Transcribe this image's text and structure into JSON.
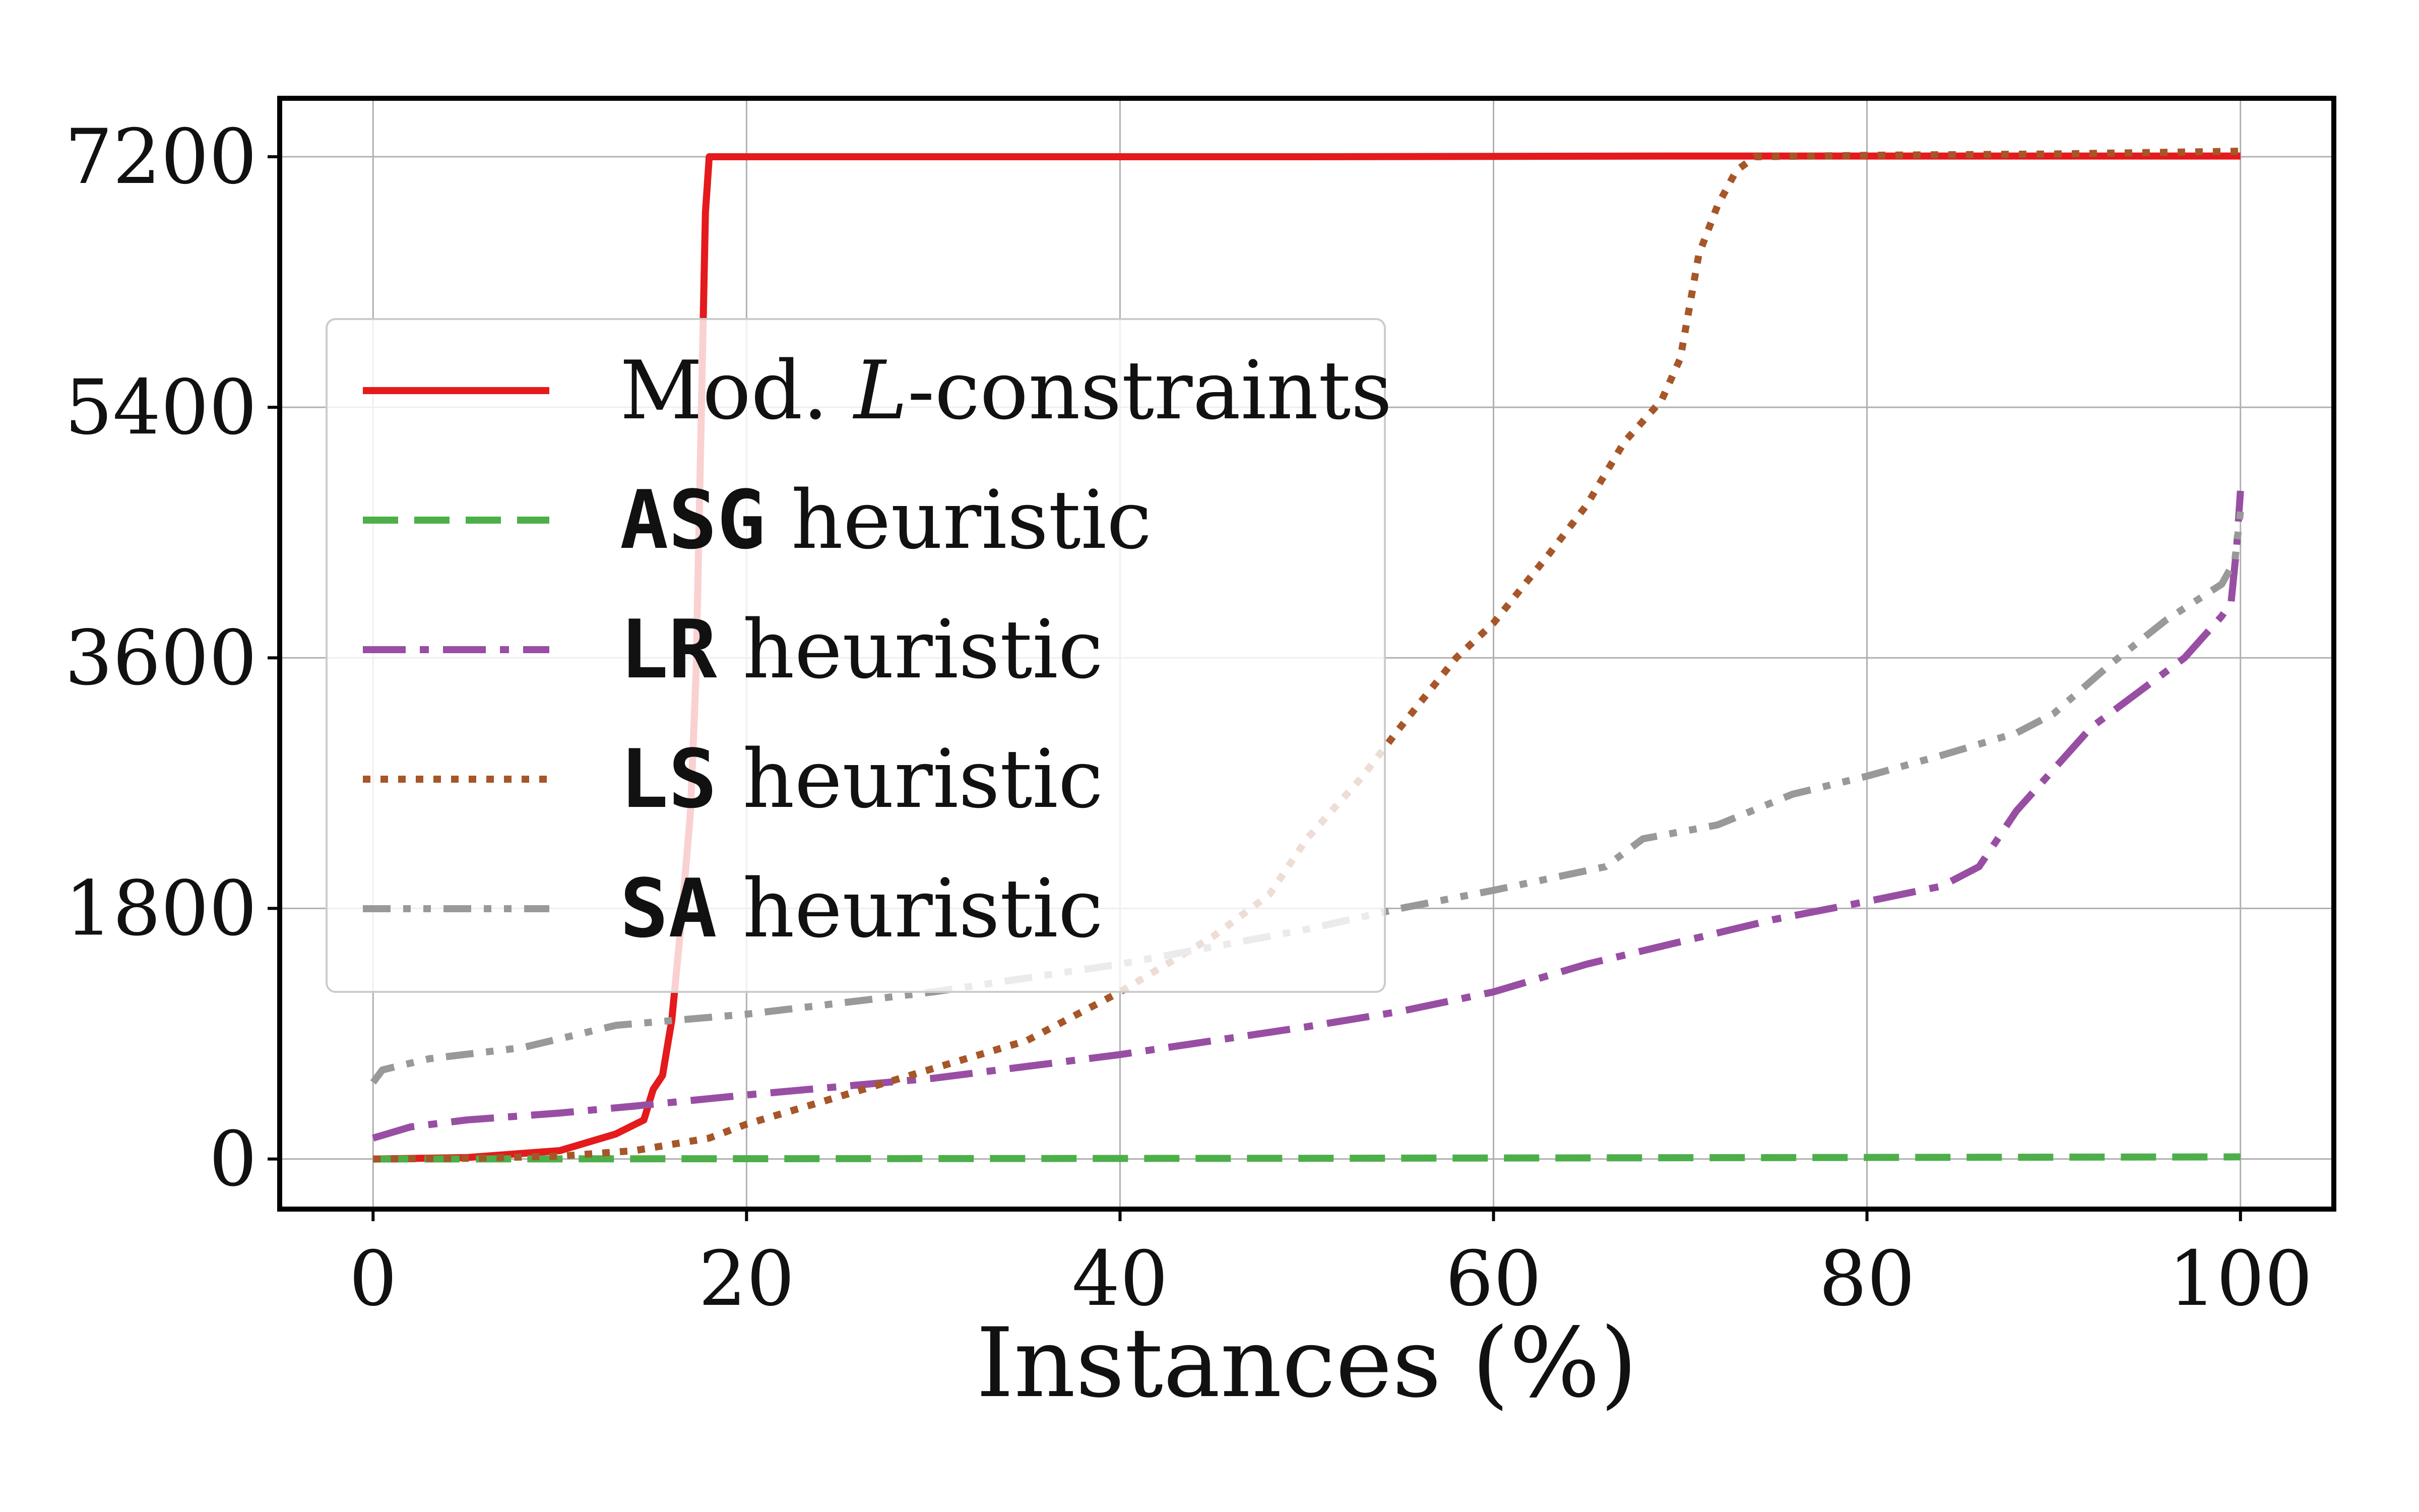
{
  "chart_data": {
    "type": "line",
    "title": "",
    "xlabel": "Instances (%)",
    "ylabel": "",
    "xlim": [
      -5,
      105
    ],
    "ylim": [
      -360,
      7620
    ],
    "xticks": [
      0,
      20,
      40,
      60,
      80,
      100
    ],
    "yticks": [
      0,
      1800,
      3600,
      5400,
      7200
    ],
    "xtick_labels": [
      "0",
      "20",
      "40",
      "60",
      "80",
      "100"
    ],
    "ytick_labels": [
      "0",
      "1800",
      "3600",
      "5400",
      "7200"
    ],
    "grid": true,
    "legend_position": "upper-left",
    "series": [
      {
        "name": "Mod. L-constraints",
        "legend_prefix": "Mod. ",
        "legend_italic": "L",
        "legend_suffix": "-constraints",
        "color": "#e41a1c",
        "dash": "solid",
        "x": [
          0,
          5,
          10,
          13,
          14.5,
          15,
          15.5,
          16,
          16.5,
          17,
          17.3,
          17.6,
          17.8,
          18,
          30,
          50,
          70,
          100
        ],
        "y": [
          0,
          10,
          60,
          180,
          280,
          500,
          600,
          1000,
          1700,
          2500,
          3500,
          5500,
          6800,
          7200,
          7200,
          7200,
          7205,
          7205
        ]
      },
      {
        "name": "ASG heuristic",
        "legend_prefix": "",
        "legend_mono": "ASG",
        "legend_suffix": " heuristic",
        "color": "#4daf4a",
        "dash": "dashed",
        "x": [
          0,
          50,
          100
        ],
        "y": [
          0,
          5,
          15
        ]
      },
      {
        "name": "LR heuristic",
        "legend_prefix": "",
        "legend_mono": "LR",
        "legend_suffix": " heuristic",
        "color": "#984ea3",
        "dash": "dashdot",
        "x": [
          0,
          2,
          5,
          10,
          14,
          20,
          30,
          40,
          50,
          55,
          60,
          65,
          70,
          75,
          80,
          84,
          86,
          88,
          90,
          92,
          95,
          97,
          99,
          99.5,
          99.8,
          100
        ],
        "y": [
          150,
          230,
          280,
          330,
          380,
          460,
          580,
          750,
          950,
          1060,
          1200,
          1400,
          1560,
          1720,
          1850,
          1960,
          2100,
          2500,
          2800,
          3100,
          3400,
          3600,
          3900,
          4000,
          4400,
          4800
        ]
      },
      {
        "name": "LS heuristic",
        "legend_prefix": "",
        "legend_mono": "LS",
        "legend_suffix": " heuristic",
        "color": "#a65628",
        "dash": "dotted",
        "x": [
          0,
          5,
          10,
          14,
          18,
          20,
          25,
          30,
          35,
          40,
          45,
          48,
          50,
          53,
          55,
          58,
          60,
          63,
          65,
          67,
          69,
          70,
          71,
          72,
          73,
          74,
          80,
          90,
          100
        ],
        "y": [
          0,
          5,
          20,
          60,
          150,
          250,
          450,
          650,
          850,
          1200,
          1600,
          1900,
          2300,
          2750,
          3100,
          3600,
          3850,
          4350,
          4700,
          5150,
          5450,
          5750,
          6500,
          6850,
          7100,
          7200,
          7210,
          7220,
          7240
        ]
      },
      {
        "name": "SA heuristic",
        "legend_prefix": "",
        "legend_mono": "SA",
        "legend_suffix": " heuristic",
        "color": "#999999",
        "dash": "dashdotdot",
        "x": [
          0,
          0.5,
          3,
          8,
          13,
          20,
          30,
          40,
          50,
          55,
          60,
          66,
          68,
          72,
          76,
          80,
          84,
          88,
          90,
          93,
          96,
          99,
          99.7,
          100
        ],
        "y": [
          550,
          640,
          720,
          800,
          960,
          1040,
          1200,
          1400,
          1650,
          1800,
          1930,
          2100,
          2300,
          2400,
          2620,
          2750,
          2900,
          3060,
          3200,
          3550,
          3870,
          4130,
          4300,
          4650
        ]
      }
    ]
  }
}
